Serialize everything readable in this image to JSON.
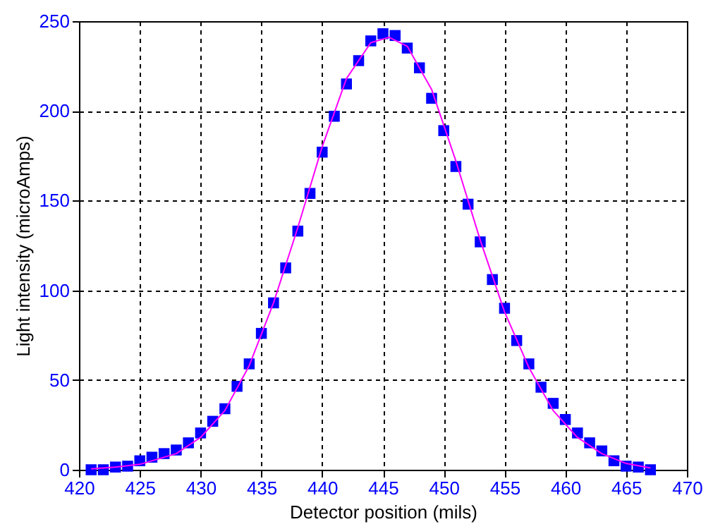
{
  "chart_data": {
    "type": "scatter",
    "xlabel": "Detector position (mils)",
    "ylabel": "Light intensity (microAmps)",
    "xlim": [
      420,
      470
    ],
    "xticks": [
      420,
      425,
      430,
      435,
      440,
      445,
      450,
      455,
      460,
      465,
      470
    ],
    "ylim": [
      0,
      250
    ],
    "yticks": [
      0,
      50,
      100,
      150,
      200,
      250
    ],
    "grid": true,
    "series": [
      {
        "marker": "square",
        "color": "#0000ff",
        "x": [
          421,
          422,
          423,
          424,
          425,
          426,
          427,
          428,
          429,
          430,
          431,
          432,
          433,
          434,
          435,
          436,
          437,
          438,
          439,
          440,
          441,
          442,
          443,
          444,
          445,
          446,
          447,
          448,
          449,
          450,
          451,
          452,
          453,
          454,
          455,
          456,
          457,
          458,
          459,
          460,
          461,
          462,
          463,
          464,
          465,
          466,
          467
        ],
        "values": [
          0,
          0,
          1.5,
          2,
          5,
          7,
          9,
          11,
          15,
          20.5,
          27,
          34,
          46.5,
          59,
          76,
          93,
          112.5,
          133,
          154,
          177,
          197,
          215,
          228,
          239,
          243,
          242,
          235,
          224,
          207,
          189,
          169,
          148,
          127,
          106,
          90,
          72,
          59,
          46,
          37,
          28,
          20.5,
          15,
          10.5,
          5,
          2,
          1.5,
          0
        ]
      },
      {
        "type": "line",
        "marker": "none",
        "line_style": "solid",
        "color": "#ff00ff",
        "x": [
          421,
          423,
          425,
          428,
          430,
          432,
          434,
          436,
          438,
          440,
          442,
          444,
          445.5,
          447,
          449,
          451,
          453,
          455,
          457,
          459,
          461,
          463,
          465,
          467
        ],
        "values": [
          0.5,
          1.5,
          3,
          9,
          18,
          33,
          58,
          93,
          135,
          180,
          218,
          238,
          241,
          236,
          212,
          172,
          128,
          88,
          57,
          33,
          18,
          9,
          3.5,
          1
        ]
      }
    ]
  }
}
